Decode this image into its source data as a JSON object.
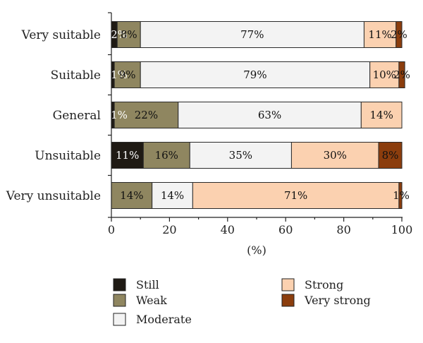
{
  "chart_data": {
    "type": "bar",
    "orientation": "horizontal",
    "stacked": true,
    "categories": [
      "Very suitable",
      "Suitable",
      "General",
      "Unsuitable",
      "Very unsuitable"
    ],
    "series": [
      {
        "name": "Still",
        "color": "#1f1a14",
        "values": [
          2,
          1,
          1,
          11,
          0
        ],
        "labels": [
          "2%",
          "1%",
          "1%",
          "11%",
          ""
        ],
        "label_color": "#ffffff"
      },
      {
        "name": "Weak",
        "color": "#8f8660",
        "values": [
          8,
          9,
          22,
          16,
          14
        ],
        "labels": [
          "8%",
          "9%",
          "22%",
          "16%",
          "14%"
        ],
        "label_color": "#111111"
      },
      {
        "name": "Moderate",
        "color": "#f3f3f3",
        "values": [
          77,
          79,
          63,
          35,
          14
        ],
        "labels": [
          "77%",
          "79%",
          "63%",
          "35%",
          "14%"
        ],
        "label_color": "#111111"
      },
      {
        "name": "Strong",
        "color": "#fbd1b0",
        "values": [
          11,
          10,
          14,
          30,
          71
        ],
        "labels": [
          "11%",
          "10%",
          "14%",
          "30%",
          "71%"
        ],
        "label_color": "#111111"
      },
      {
        "name": "Very strong",
        "color": "#8b3d0d",
        "values": [
          2,
          2,
          0,
          8,
          1
        ],
        "labels": [
          "2%",
          "2%",
          "",
          "8%",
          "1%"
        ],
        "label_color": "#111111"
      }
    ],
    "xlabel": "(%)",
    "xlim": [
      0,
      100
    ],
    "xticks": [
      0,
      20,
      40,
      60,
      80,
      100
    ],
    "grid": false,
    "legend_position": "bottom"
  }
}
